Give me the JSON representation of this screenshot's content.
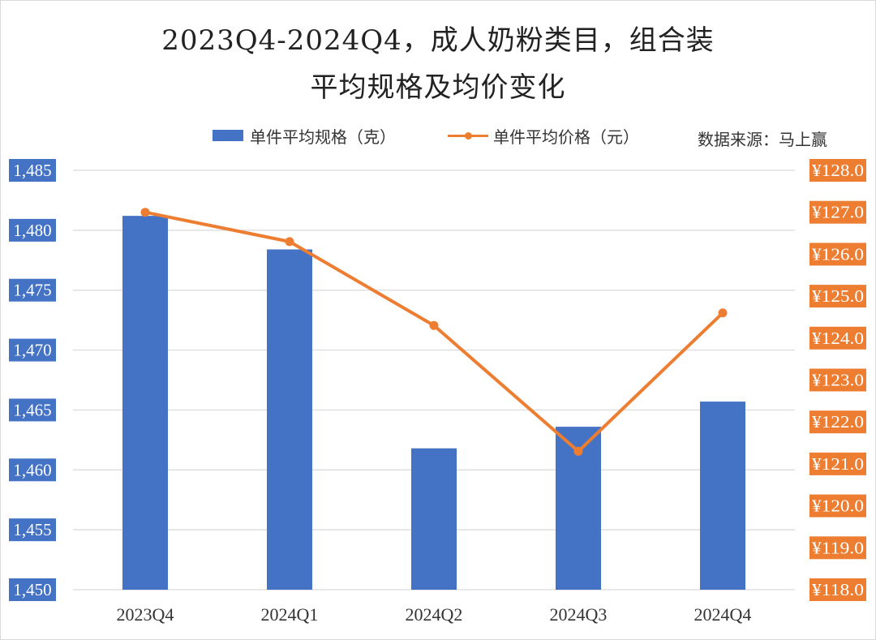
{
  "title": {
    "line1": "2023Q4-2024Q4，成人奶粉类目，组合装",
    "line2": "平均规格及均价变化"
  },
  "legend": {
    "bar_label": "单件平均规格（克）",
    "line_label": "单件平均价格（元）"
  },
  "source": "数据来源：马上赢",
  "colors": {
    "bar": "#4472c4",
    "line": "#ed7d31",
    "grid": "#d9d9d9"
  },
  "chart_data": {
    "type": "bar",
    "categories": [
      "2023Q4",
      "2024Q1",
      "2024Q2",
      "2024Q3",
      "2024Q4"
    ],
    "series": [
      {
        "name": "单件平均规格（克）",
        "type": "bar",
        "axis": "left",
        "values": [
          1481.2,
          1478.4,
          1461.8,
          1463.6,
          1465.7
        ]
      },
      {
        "name": "单件平均价格（元）",
        "type": "line",
        "axis": "right",
        "values": [
          127.0,
          126.3,
          124.3,
          121.3,
          124.6
        ]
      }
    ],
    "y_left": {
      "ylim": [
        1450,
        1485
      ],
      "ticks": [
        1450,
        1455,
        1460,
        1465,
        1470,
        1475,
        1480,
        1485
      ],
      "tick_labels": [
        "1,450",
        "1,455",
        "1,460",
        "1,465",
        "1,470",
        "1,475",
        "1,480",
        "1,485"
      ]
    },
    "y_right": {
      "ylim": [
        118,
        128
      ],
      "ticks": [
        118,
        119,
        120,
        121,
        122,
        123,
        124,
        125,
        126,
        127,
        128
      ],
      "tick_labels": [
        "¥118.0",
        "¥119.0",
        "¥120.0",
        "¥121.0",
        "¥122.0",
        "¥123.0",
        "¥124.0",
        "¥125.0",
        "¥126.0",
        "¥127.0",
        "¥128.0"
      ]
    },
    "grid": true,
    "legend_position": "top"
  }
}
